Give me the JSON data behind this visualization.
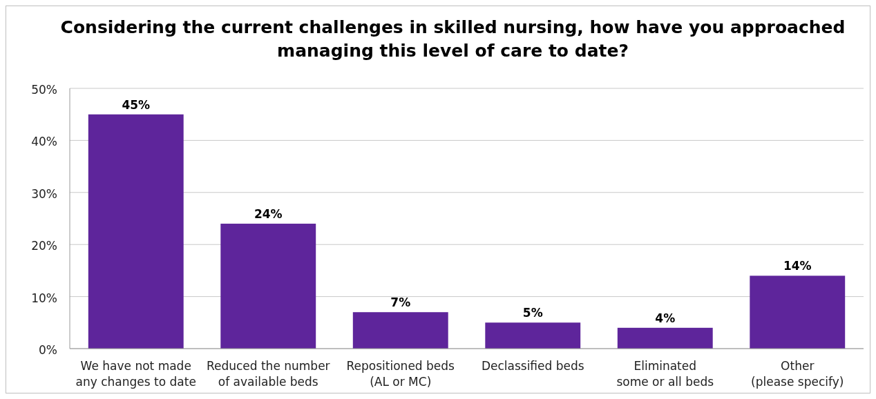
{
  "chart_data": {
    "type": "bar",
    "title": "Considering the current challenges in skilled nursing, how have you approached\nmanaging this level of care to date?",
    "categories": [
      "We have not made\nany changes to date",
      "Reduced the number\nof available beds",
      "Repositioned beds\n(AL or MC)",
      "Declassified beds",
      "Eliminated\nsome or all beds",
      "Other\n(please specify)"
    ],
    "values": [
      45,
      24,
      7,
      5,
      4,
      14
    ],
    "value_labels": [
      "45%",
      "24%",
      "7%",
      "5%",
      "4%",
      "14%"
    ],
    "color": "#5e259b",
    "ylim": [
      0,
      50
    ],
    "yticks": [
      {
        "value": 0,
        "label": "0%"
      },
      {
        "value": 10,
        "label": "10%"
      },
      {
        "value": 20,
        "label": "20%"
      },
      {
        "value": 30,
        "label": "30%"
      },
      {
        "value": 40,
        "label": "40%"
      },
      {
        "value": 50,
        "label": "50%"
      }
    ],
    "grid": "y"
  }
}
